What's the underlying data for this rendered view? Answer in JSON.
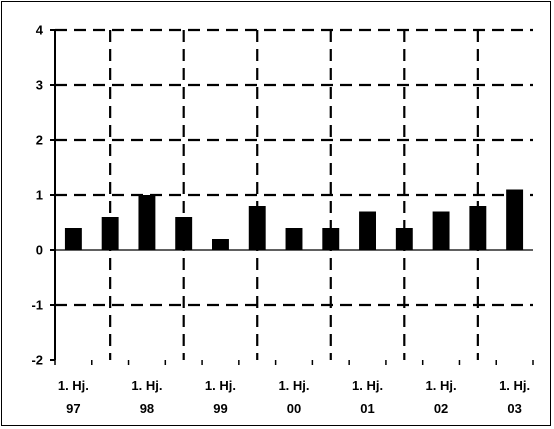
{
  "chart_data": {
    "type": "bar",
    "categories": [
      "1. Hj. 97",
      "",
      "1. Hj. 98",
      "",
      "1. Hj. 99",
      "",
      "1. Hj. 00",
      "",
      "1. Hj. 01",
      "",
      "1. Hj. 02",
      "",
      "1. Hj. 03"
    ],
    "x_tick_labels": [
      {
        "line1": "1. Hj.",
        "line2": "97"
      },
      {
        "line1": "1. Hj.",
        "line2": "98"
      },
      {
        "line1": "1. Hj.",
        "line2": "99"
      },
      {
        "line1": "1. Hj.",
        "line2": "00"
      },
      {
        "line1": "1. Hj.",
        "line2": "01"
      },
      {
        "line1": "1. Hj.",
        "line2": "02"
      },
      {
        "line1": "1. Hj.",
        "line2": "03"
      }
    ],
    "values": [
      0.4,
      0.6,
      1.0,
      0.6,
      0.2,
      0.8,
      0.4,
      0.4,
      0.7,
      0.4,
      0.7,
      0.8,
      1.1
    ],
    "y_ticks": [
      "4",
      "3",
      "2",
      "1",
      "0",
      "-1",
      "-2"
    ],
    "ylim": [
      -2,
      4
    ],
    "grid": true,
    "grid_style": "dashed",
    "bar_color": "#000000",
    "title": "",
    "xlabel": "",
    "ylabel": ""
  }
}
